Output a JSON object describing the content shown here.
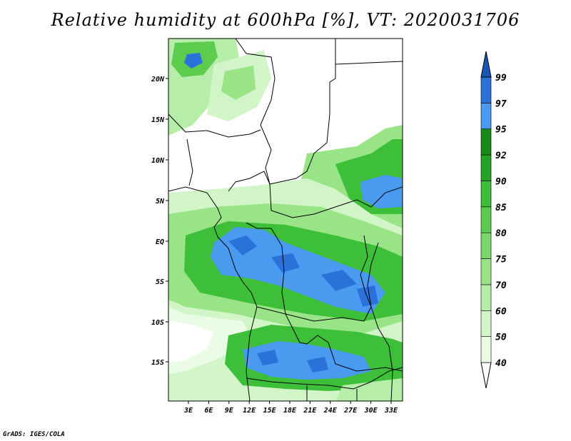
{
  "title": "Relative humidity at 600hPa [%], VT: 2020031706",
  "credit": "GrADS: IGES/COLA",
  "lat_ticks": [
    "20N",
    "15N",
    "10N",
    "5N",
    "EQ",
    "5S",
    "10S",
    "15S"
  ],
  "lon_ticks": [
    "3E",
    "6E",
    "9E",
    "12E",
    "15E",
    "18E",
    "21E",
    "24E",
    "27E",
    "30E",
    "33E"
  ],
  "colorbar": {
    "levels": [
      "40",
      "50",
      "60",
      "70",
      "75",
      "80",
      "85",
      "90",
      "92",
      "95",
      "97",
      "99"
    ],
    "colors": [
      "#ffffff",
      "#eafbe6",
      "#d2f5c8",
      "#b6eda8",
      "#98e487",
      "#7ad86a",
      "#5ccc4e",
      "#3ebf39",
      "#24a325",
      "#188a18",
      "#4a9af0",
      "#2a72da",
      "#1a56b8"
    ],
    "color_names": [
      "below-40",
      "40-50",
      "50-60",
      "60-70",
      "70-75",
      "75-80",
      "80-85",
      "85-90",
      "90-92",
      "92-95",
      "95-97",
      "97-99",
      "above-99"
    ]
  }
}
